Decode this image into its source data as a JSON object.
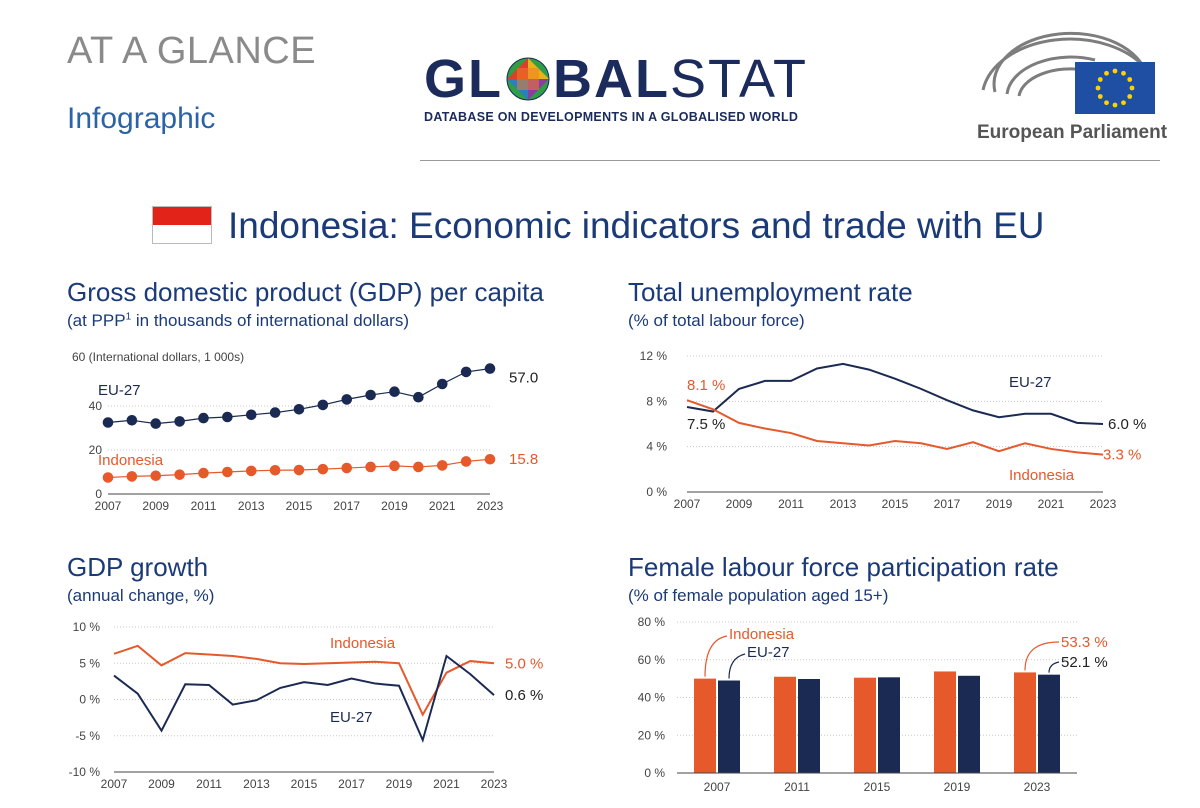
{
  "header": {
    "kicker": "AT A GLANCE",
    "type": "Infographic",
    "logo": {
      "part1": "GL",
      "part2": "BAL",
      "part3": "STAT",
      "tagline": "DATABASE ON DEVELOPMENTS IN A GLOBALISED WORLD"
    },
    "institution": "European Parliament"
  },
  "title": "Indonesia: Economic indicators and trade with EU",
  "colors": {
    "navy": "#1b2a52",
    "orange": "#e5592b",
    "title": "#1b3a78"
  },
  "panels": {
    "gdp": {
      "title": "Gross domestic product (GDP) per capita",
      "subtitle_a": "(at PPP",
      "subtitle_sup": "1",
      "subtitle_b": " in thousands of international dollars)"
    },
    "unemp": {
      "title": "Total unemployment rate",
      "subtitle": "(% of total labour force)"
    },
    "growth": {
      "title": "GDP growth",
      "subtitle": "(annual change, %)"
    },
    "female": {
      "title": "Female labour force participation rate",
      "subtitle": "(% of female population aged 15+)"
    }
  },
  "chart_data": [
    {
      "id": "gdp",
      "type": "line",
      "x": [
        2007,
        2008,
        2009,
        2010,
        2011,
        2012,
        2013,
        2014,
        2015,
        2016,
        2017,
        2018,
        2019,
        2020,
        2021,
        2022,
        2023
      ],
      "x_tick_labels": [
        "2007",
        "2009",
        "2011",
        "2013",
        "2015",
        "2017",
        "2019",
        "2021",
        "2023"
      ],
      "y_tick_labels": [
        "0",
        "20",
        "40"
      ],
      "y_axis_note": "60 (International dollars, 1 000s)",
      "ylim": [
        0,
        60
      ],
      "series": [
        {
          "name": "EU-27",
          "end_label": "57.0",
          "values": [
            32.5,
            33.5,
            32.0,
            33.0,
            34.5,
            35.0,
            36.0,
            37.0,
            38.5,
            40.5,
            43.0,
            45.0,
            46.5,
            44.0,
            50.0,
            55.5,
            57.0
          ]
        },
        {
          "name": "Indonesia",
          "end_label": "15.8",
          "values": [
            7.5,
            8.0,
            8.3,
            8.8,
            9.5,
            10.0,
            10.5,
            10.8,
            10.9,
            11.3,
            11.8,
            12.3,
            12.8,
            12.3,
            13.0,
            14.8,
            15.8
          ]
        }
      ]
    },
    {
      "id": "unemp",
      "type": "line",
      "x": [
        2007,
        2008,
        2009,
        2010,
        2011,
        2012,
        2013,
        2014,
        2015,
        2016,
        2017,
        2018,
        2019,
        2020,
        2021,
        2022,
        2023
      ],
      "x_tick_labels": [
        "2007",
        "2009",
        "2011",
        "2013",
        "2015",
        "2017",
        "2019",
        "2021",
        "2023"
      ],
      "y_tick_labels": [
        "0 %",
        "4 %",
        "8 %",
        "12 %"
      ],
      "ylim": [
        0,
        12
      ],
      "series": [
        {
          "name": "EU-27",
          "start_label": "7.5 %",
          "end_label": "6.0 %",
          "values": [
            7.5,
            7.1,
            9.1,
            9.8,
            9.8,
            10.9,
            11.3,
            10.8,
            10.0,
            9.1,
            8.1,
            7.2,
            6.6,
            6.9,
            6.9,
            6.1,
            6.0
          ]
        },
        {
          "name": "Indonesia",
          "start_label": "8.1 %",
          "end_label": "3.3 %",
          "values": [
            8.1,
            7.3,
            6.1,
            5.6,
            5.2,
            4.5,
            4.3,
            4.1,
            4.5,
            4.3,
            3.8,
            4.4,
            3.6,
            4.3,
            3.8,
            3.5,
            3.3
          ]
        }
      ]
    },
    {
      "id": "growth",
      "type": "line",
      "x": [
        2007,
        2008,
        2009,
        2010,
        2011,
        2012,
        2013,
        2014,
        2015,
        2016,
        2017,
        2018,
        2019,
        2020,
        2021,
        2022,
        2023
      ],
      "x_tick_labels": [
        "2007",
        "2009",
        "2011",
        "2013",
        "2015",
        "2017",
        "2019",
        "2021",
        "2023"
      ],
      "y_tick_labels": [
        "-10 %",
        "-5 %",
        "0 %",
        "5 %",
        "10 %"
      ],
      "ylim": [
        -10,
        10
      ],
      "series": [
        {
          "name": "Indonesia",
          "end_label": "5.0 %",
          "values": [
            6.3,
            7.4,
            4.7,
            6.4,
            6.2,
            6.0,
            5.6,
            5.0,
            4.9,
            5.0,
            5.1,
            5.2,
            5.0,
            -2.1,
            3.7,
            5.3,
            5.0
          ]
        },
        {
          "name": "EU-27",
          "end_label": "0.6 %",
          "values": [
            3.3,
            0.8,
            -4.3,
            2.1,
            2.0,
            -0.7,
            -0.1,
            1.6,
            2.4,
            2.0,
            2.9,
            2.2,
            1.9,
            -5.6,
            6.0,
            3.5,
            0.6
          ]
        }
      ]
    },
    {
      "id": "female",
      "type": "bar",
      "categories": [
        "2007",
        "2011",
        "2015",
        "2019",
        "2023"
      ],
      "y_tick_labels": [
        "0 %",
        "20 %",
        "40 %",
        "60 %",
        "80 %"
      ],
      "ylim": [
        0,
        80
      ],
      "series": [
        {
          "name": "Indonesia",
          "end_label": "53.3 %",
          "values": [
            50.0,
            51.0,
            50.5,
            53.8,
            53.3
          ]
        },
        {
          "name": "EU-27",
          "end_label": "52.1 %",
          "values": [
            49.0,
            49.8,
            50.7,
            51.5,
            52.1
          ]
        }
      ]
    }
  ]
}
